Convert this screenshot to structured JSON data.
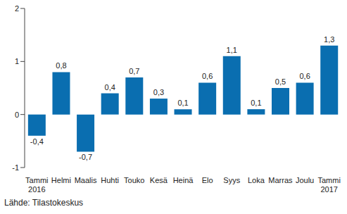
{
  "chart_data": {
    "type": "bar",
    "categories": [
      "Tammi 2016",
      "Helmi",
      "Maalis",
      "Huhti",
      "Touko",
      "Kesä",
      "Heinä",
      "Elo",
      "Syys",
      "Loka",
      "Marras",
      "Joulu",
      "Tammi 2017"
    ],
    "values": [
      -0.4,
      0.8,
      -0.7,
      0.4,
      0.7,
      0.3,
      0.1,
      0.6,
      1.1,
      0.1,
      0.5,
      0.6,
      1.3
    ],
    "value_labels": [
      "-0,4",
      "0,8",
      "-0,7",
      "0,4",
      "0,7",
      "0,3",
      "0,1",
      "0,6",
      "1,1",
      "0,1",
      "0,5",
      "0,6",
      "1,3"
    ],
    "data_labels": true,
    "color": "#0a6eb0",
    "ylim": [
      -1,
      2
    ],
    "yticks": [
      -1,
      0,
      1,
      2
    ],
    "grid": false,
    "source": "Lähde: Tilastokeskus"
  }
}
